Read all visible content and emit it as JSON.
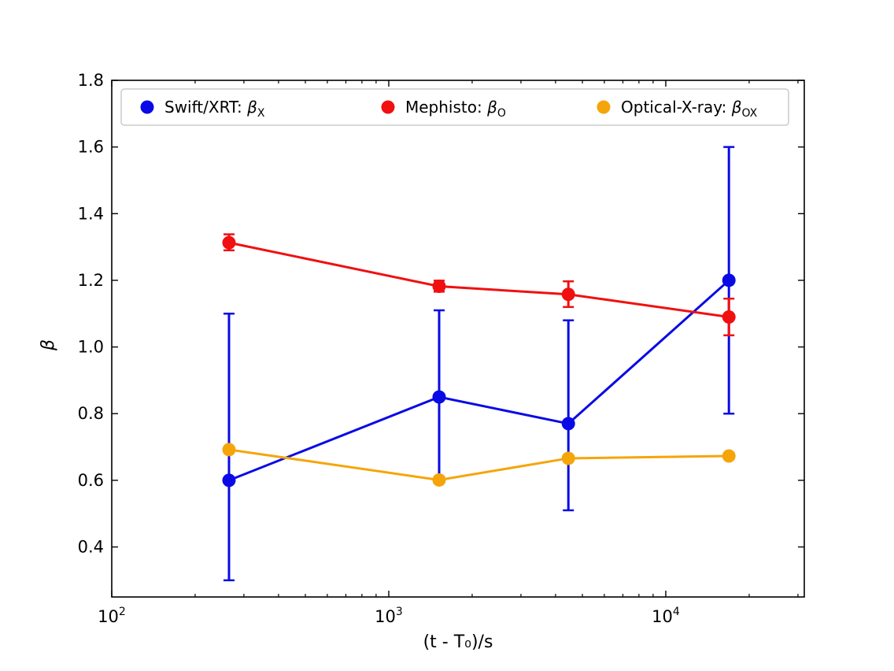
{
  "chart_data": {
    "type": "line",
    "xscale": "log",
    "xlim": [
      100,
      31623
    ],
    "ylim": [
      0.25,
      1.8
    ],
    "xlabel": "(t - T₀)/s",
    "ylabel": "β",
    "x_ticks": [
      {
        "value": 100,
        "base": "10",
        "exp": "2"
      },
      {
        "value": 1000,
        "base": "10",
        "exp": "3"
      },
      {
        "value": 10000,
        "base": "10",
        "exp": "4"
      }
    ],
    "y_ticks": [
      "0.4",
      "0.6",
      "0.8",
      "1.0",
      "1.2",
      "1.4",
      "1.6",
      "1.8"
    ],
    "legend_position": "top",
    "series": [
      {
        "name": "Swift/XRT: β",
        "legend_main": "Swift/XRT: ",
        "legend_symbol": "β",
        "legend_sub": "X",
        "color": "#0a0ae6",
        "errorbars": true,
        "points": [
          {
            "x": 265,
            "y": 0.6,
            "lo": 0.3,
            "hi": 1.1
          },
          {
            "x": 1520,
            "y": 0.85,
            "lo": 0.61,
            "hi": 1.11
          },
          {
            "x": 4450,
            "y": 0.77,
            "lo": 0.51,
            "hi": 1.08
          },
          {
            "x": 16900,
            "y": 1.2,
            "lo": 0.8,
            "hi": 1.6
          }
        ]
      },
      {
        "name": "Mephisto: β",
        "legend_main": "Mephisto: ",
        "legend_symbol": "β",
        "legend_sub": "O",
        "color": "#f01010",
        "errorbars": true,
        "points": [
          {
            "x": 265,
            "y": 1.313,
            "lo": 1.29,
            "hi": 1.338
          },
          {
            "x": 1520,
            "y": 1.182,
            "lo": 1.166,
            "hi": 1.199
          },
          {
            "x": 4450,
            "y": 1.158,
            "lo": 1.12,
            "hi": 1.197
          },
          {
            "x": 16900,
            "y": 1.09,
            "lo": 1.035,
            "hi": 1.145
          }
        ]
      },
      {
        "name": "Optical-X-ray: β",
        "legend_main": "Optical-X-ray: ",
        "legend_symbol": "β",
        "legend_sub": "OX",
        "color": "#f5a50a",
        "errorbars": false,
        "points": [
          {
            "x": 265,
            "y": 0.692
          },
          {
            "x": 1520,
            "y": 0.601
          },
          {
            "x": 4450,
            "y": 0.666
          },
          {
            "x": 16900,
            "y": 0.673
          }
        ]
      }
    ]
  }
}
